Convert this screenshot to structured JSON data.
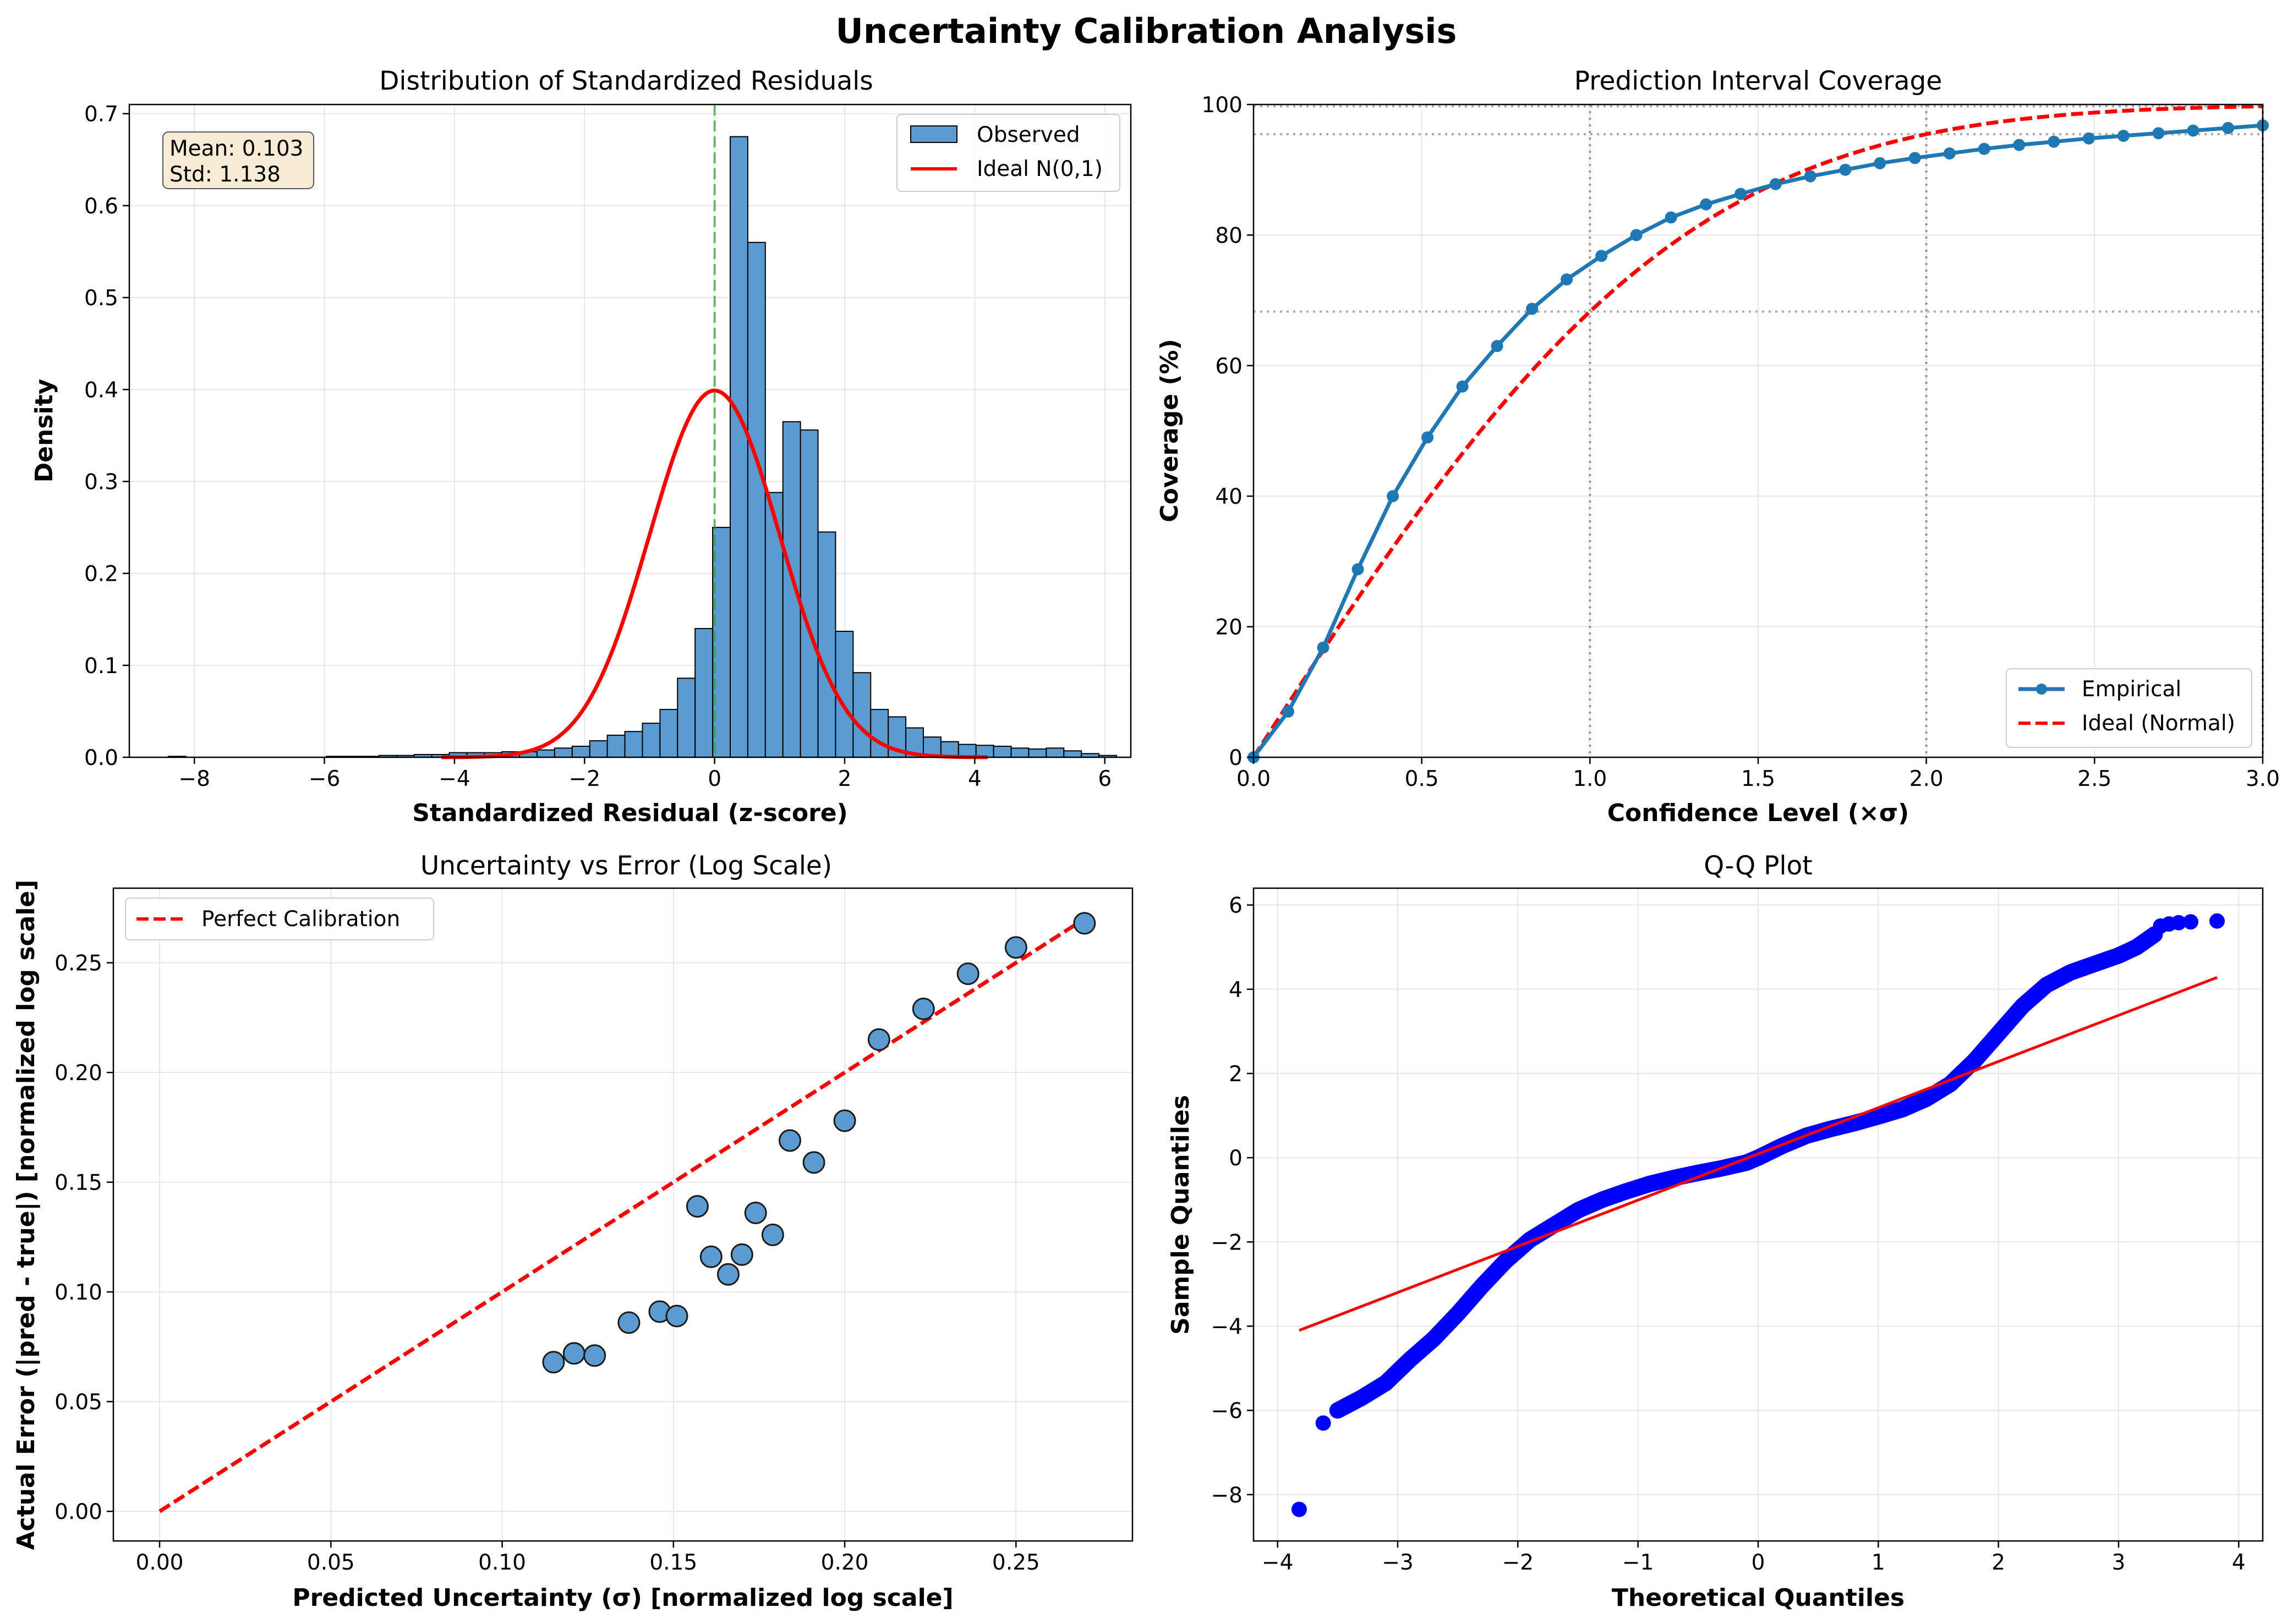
{
  "figure": {
    "suptitle": "Uncertainty Calibration Analysis"
  },
  "colors": {
    "bar": "#5b9bcf",
    "blue": "#1f77b4",
    "red": "#ff0000",
    "green": "#2ca02c",
    "qq": "#0000ff",
    "grid": "#e6e6e6",
    "statbox": "#f8ecd6"
  },
  "chart_data": [
    {
      "type": "bar",
      "title": "Distribution of Standardized Residuals",
      "xlabel": "Standardized Residual (z-score)",
      "ylabel": "Density",
      "xlim": [
        -9,
        6.4
      ],
      "ylim": [
        0,
        0.71
      ],
      "xticks": [
        -8,
        -6,
        -4,
        -2,
        0,
        2,
        4,
        6
      ],
      "yticks": [
        0.0,
        0.1,
        0.2,
        0.3,
        0.4,
        0.5,
        0.6,
        0.7
      ],
      "bin_start": -8.4,
      "bin_width": 0.27,
      "values": [
        0.001,
        0.0,
        0.0,
        0.0,
        0.0,
        0.0,
        0.0,
        0.0,
        0.0,
        0.001,
        0.001,
        0.001,
        0.002,
        0.002,
        0.003,
        0.003,
        0.005,
        0.005,
        0.005,
        0.006,
        0.006,
        0.008,
        0.01,
        0.012,
        0.018,
        0.024,
        0.028,
        0.037,
        0.052,
        0.086,
        0.14,
        0.25,
        0.675,
        0.56,
        0.288,
        0.365,
        0.356,
        0.245,
        0.137,
        0.092,
        0.052,
        0.044,
        0.032,
        0.022,
        0.017,
        0.014,
        0.013,
        0.012,
        0.01,
        0.009,
        0.01,
        0.007,
        0.004,
        0.002
      ],
      "observed_label": "Observed",
      "ideal_label": "Ideal N(0,1)",
      "mean_line": 0.0,
      "stats": {
        "mean": "Mean: 0.103",
        "std": "Std: 1.138"
      }
    },
    {
      "type": "line",
      "title": "Prediction Interval Coverage",
      "xlabel": "Confidence Level (×σ)",
      "ylabel": "Coverage (%)",
      "xlim": [
        0,
        3
      ],
      "ylim": [
        0,
        100
      ],
      "xticks": [
        0.0,
        0.5,
        1.0,
        1.5,
        2.0,
        2.5,
        3.0
      ],
      "yticks": [
        0,
        20,
        40,
        60,
        80,
        100
      ],
      "hlines": [
        68.27,
        95.45,
        99.73
      ],
      "vlines": [
        1,
        2,
        3
      ],
      "series": [
        {
          "name": "Empirical",
          "x": [
            0.0,
            0.103,
            0.207,
            0.31,
            0.414,
            0.517,
            0.621,
            0.724,
            0.828,
            0.931,
            1.034,
            1.138,
            1.241,
            1.345,
            1.448,
            1.552,
            1.655,
            1.759,
            1.862,
            1.966,
            2.069,
            2.172,
            2.276,
            2.379,
            2.483,
            2.586,
            2.69,
            2.793,
            2.897,
            3.0
          ],
          "y": [
            0.0,
            7.0,
            16.8,
            28.8,
            40.0,
            49.0,
            56.8,
            63.0,
            68.7,
            73.2,
            76.8,
            80.0,
            82.7,
            84.7,
            86.3,
            87.8,
            89.0,
            90.0,
            91.0,
            91.8,
            92.5,
            93.2,
            93.8,
            94.3,
            94.8,
            95.2,
            95.6,
            96.0,
            96.4,
            96.8
          ]
        },
        {
          "name": "Ideal (Normal)",
          "function": "erf(x/sqrt(2))*100"
        }
      ]
    },
    {
      "type": "scatter",
      "title": "Uncertainty vs Error (Log Scale)",
      "xlabel": "Predicted Uncertainty (σ) [normalized log scale]",
      "ylabel": "Actual Error (|pred - true|) [normalized log scale]",
      "xlim": [
        -0.0135,
        0.284
      ],
      "ylim": [
        -0.0135,
        0.284
      ],
      "xticks": [
        0.0,
        0.05,
        0.1,
        0.15,
        0.2,
        0.25
      ],
      "yticks": [
        0.0,
        0.05,
        0.1,
        0.15,
        0.2,
        0.25
      ],
      "points": [
        {
          "x": 0.115,
          "y": 0.068
        },
        {
          "x": 0.121,
          "y": 0.072
        },
        {
          "x": 0.127,
          "y": 0.071
        },
        {
          "x": 0.137,
          "y": 0.086
        },
        {
          "x": 0.146,
          "y": 0.091
        },
        {
          "x": 0.151,
          "y": 0.089
        },
        {
          "x": 0.157,
          "y": 0.139
        },
        {
          "x": 0.161,
          "y": 0.116
        },
        {
          "x": 0.166,
          "y": 0.108
        },
        {
          "x": 0.17,
          "y": 0.117
        },
        {
          "x": 0.174,
          "y": 0.136
        },
        {
          "x": 0.179,
          "y": 0.126
        },
        {
          "x": 0.184,
          "y": 0.169
        },
        {
          "x": 0.191,
          "y": 0.159
        },
        {
          "x": 0.2,
          "y": 0.178
        },
        {
          "x": 0.21,
          "y": 0.215
        },
        {
          "x": 0.223,
          "y": 0.229
        },
        {
          "x": 0.236,
          "y": 0.245
        },
        {
          "x": 0.25,
          "y": 0.257
        },
        {
          "x": 0.27,
          "y": 0.268
        }
      ],
      "reference": {
        "name": "Perfect Calibration",
        "x": [
          0,
          0.27
        ],
        "y": [
          0,
          0.27
        ]
      }
    },
    {
      "type": "scatter",
      "title": "Q-Q Plot",
      "xlabel": "Theoretical Quantiles",
      "ylabel": "Sample Quantiles",
      "xlim": [
        -4.2,
        4.2
      ],
      "ylim": [
        -9.1,
        6.4
      ],
      "xticks": [
        -4,
        -3,
        -2,
        -1,
        0,
        1,
        2,
        3,
        4
      ],
      "yticks": [
        -8,
        -6,
        -4,
        -2,
        0,
        2,
        4,
        6
      ],
      "quantile_curve": [
        [
          -3.82,
          -8.35
        ],
        [
          -3.62,
          -6.3
        ],
        [
          -3.5,
          -6.0
        ],
        [
          -3.3,
          -5.7
        ],
        [
          -3.1,
          -5.35
        ],
        [
          -2.9,
          -4.8
        ],
        [
          -2.7,
          -4.3
        ],
        [
          -2.5,
          -3.7
        ],
        [
          -2.3,
          -3.05
        ],
        [
          -2.1,
          -2.45
        ],
        [
          -1.9,
          -1.95
        ],
        [
          -1.7,
          -1.6
        ],
        [
          -1.5,
          -1.25
        ],
        [
          -1.3,
          -1.0
        ],
        [
          -1.1,
          -0.8
        ],
        [
          -0.9,
          -0.62
        ],
        [
          -0.7,
          -0.48
        ],
        [
          -0.5,
          -0.36
        ],
        [
          -0.3,
          -0.25
        ],
        [
          -0.1,
          -0.12
        ],
        [
          0.0,
          0.0
        ],
        [
          0.2,
          0.28
        ],
        [
          0.4,
          0.52
        ],
        [
          0.6,
          0.68
        ],
        [
          0.8,
          0.82
        ],
        [
          1.0,
          0.98
        ],
        [
          1.2,
          1.15
        ],
        [
          1.4,
          1.4
        ],
        [
          1.6,
          1.75
        ],
        [
          1.8,
          2.3
        ],
        [
          2.0,
          2.95
        ],
        [
          2.2,
          3.6
        ],
        [
          2.4,
          4.1
        ],
        [
          2.6,
          4.4
        ],
        [
          2.8,
          4.6
        ],
        [
          3.0,
          4.8
        ],
        [
          3.15,
          5.0
        ],
        [
          3.3,
          5.3
        ],
        [
          3.35,
          5.5
        ],
        [
          3.42,
          5.55
        ],
        [
          3.5,
          5.58
        ],
        [
          3.6,
          5.6
        ],
        [
          3.82,
          5.62
        ]
      ],
      "extreme_points": [
        [
          -3.82,
          -8.35
        ],
        [
          -3.62,
          -6.3
        ],
        [
          3.35,
          5.5
        ],
        [
          3.42,
          5.55
        ],
        [
          3.5,
          5.58
        ],
        [
          3.6,
          5.6
        ],
        [
          3.82,
          5.62
        ]
      ],
      "fit_line": {
        "x": [
          -3.82,
          3.82
        ],
        "y": [
          -4.1,
          4.28
        ]
      }
    }
  ]
}
